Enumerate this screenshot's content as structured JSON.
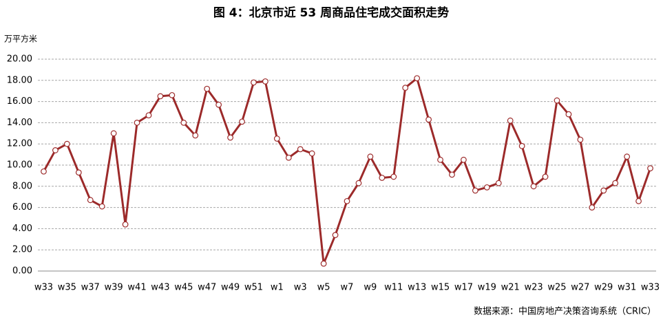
{
  "chart_data": {
    "type": "line",
    "title": "图 4：北京市近 53 周商品住宅成交面积走势",
    "y_label": "万平方米",
    "source": "数据来源：中国房地产决策咨询系统（CRIC）",
    "categories": [
      "w33",
      null,
      "w35",
      null,
      "w37",
      null,
      "w39",
      null,
      "w41",
      null,
      "w43",
      null,
      "w45",
      null,
      "w47",
      null,
      "w49",
      null,
      "w51",
      null,
      "w1",
      null,
      "w3",
      null,
      "w5",
      null,
      "w7",
      null,
      "w9",
      null,
      "w11",
      null,
      "w13",
      null,
      "w15",
      null,
      "w17",
      null,
      "w19",
      null,
      "w21",
      null,
      "w23",
      null,
      "w25",
      null,
      "w27",
      null,
      "w29",
      null,
      "w31",
      null,
      "w33"
    ],
    "series": [
      {
        "color": "#9c2a2a",
        "values": [
          9.4,
          11.4,
          12.0,
          9.3,
          6.7,
          6.1,
          13.0,
          4.4,
          14.0,
          14.7,
          16.5,
          16.6,
          14.0,
          12.8,
          17.2,
          15.7,
          12.6,
          14.1,
          17.8,
          17.9,
          12.5,
          10.7,
          11.5,
          11.1,
          0.7,
          3.4,
          6.6,
          8.3,
          10.8,
          8.8,
          8.9,
          17.3,
          18.2,
          14.3,
          10.5,
          9.1,
          10.5,
          7.6,
          7.9,
          8.3,
          14.2,
          11.8,
          8.0,
          8.9,
          16.1,
          14.8,
          12.4,
          6.0,
          7.6,
          8.3,
          10.8,
          6.6,
          9.7
        ]
      }
    ],
    "ylim": [
      0,
      20
    ],
    "yticks": [
      {
        "value": 0,
        "label": "0.00"
      },
      {
        "value": 2,
        "label": "2.00"
      },
      {
        "value": 4,
        "label": "4.00"
      },
      {
        "value": 6,
        "label": "6.00"
      },
      {
        "value": 8,
        "label": "8.00"
      },
      {
        "value": 10,
        "label": "10.00"
      },
      {
        "value": 12,
        "label": "12.00"
      },
      {
        "value": 14,
        "label": "14.00"
      },
      {
        "value": 16,
        "label": "16.00"
      },
      {
        "value": 18,
        "label": "18.00"
      },
      {
        "value": 20,
        "label": "20.00"
      }
    ],
    "grid": true
  }
}
